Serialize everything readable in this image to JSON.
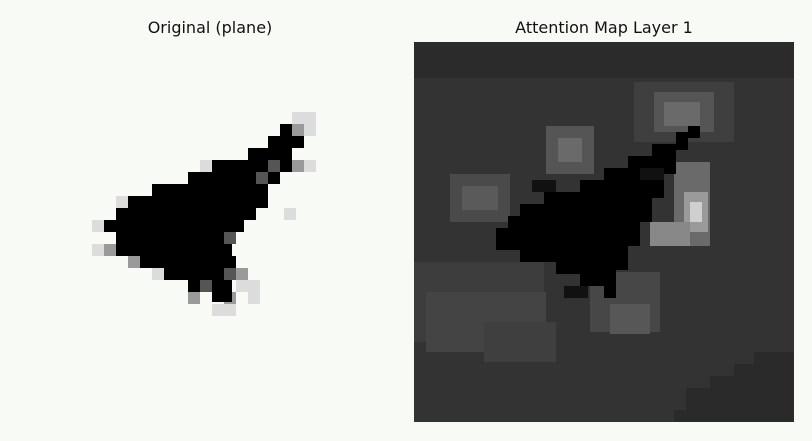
{
  "panels": {
    "left": {
      "title": "Original (plane)"
    },
    "right": {
      "title": "Attention Map Layer 1"
    }
  },
  "colors": {
    "background": "#f8faf5",
    "ink": "#000000",
    "map_base": "#333333"
  }
}
